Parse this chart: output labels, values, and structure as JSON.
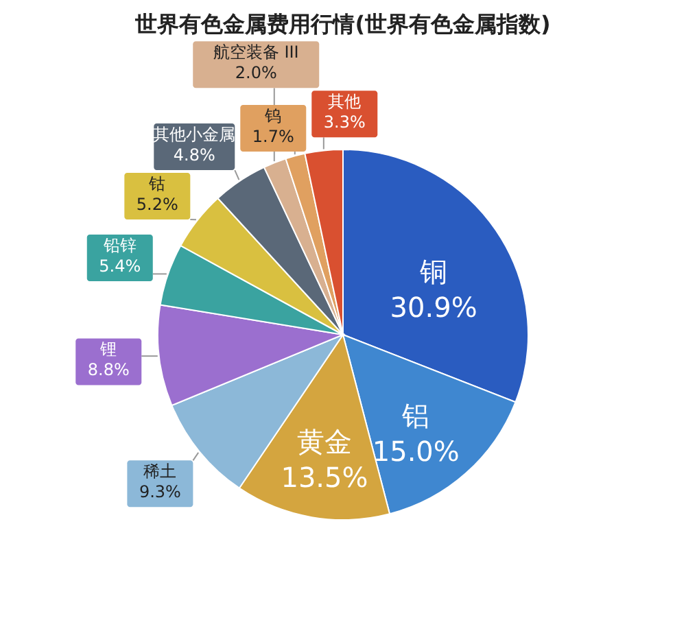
{
  "chart_data": {
    "type": "pie",
    "title": "世界有色金属费用行情(世界有色金属指数)",
    "categories": [
      "铜",
      "铝",
      "黄金",
      "稀土",
      "锂",
      "铅锌",
      "钴",
      "其他小金属",
      "航空装备 III",
      "钨",
      "其他"
    ],
    "values": [
      30.9,
      15.0,
      13.5,
      9.3,
      8.8,
      5.4,
      5.2,
      4.8,
      2.0,
      1.7,
      3.3
    ],
    "value_labels": [
      "30.9%",
      "15.0%",
      "13.5%",
      "9.3%",
      "8.8%",
      "5.4%",
      "5.2%",
      "4.8%",
      "2.0%",
      "1.7%",
      "3.3%"
    ],
    "colors": [
      "#2a5cc0",
      "#3f87d0",
      "#d4a53f",
      "#8cb8d8",
      "#9b6fcf",
      "#3aa3a0",
      "#d9c040",
      "#5a6878",
      "#d8b090",
      "#e0a060",
      "#d95030"
    ],
    "legend": false
  }
}
